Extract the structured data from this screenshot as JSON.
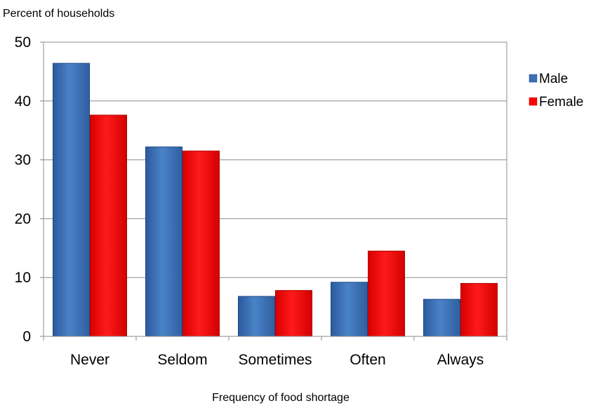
{
  "chart_data": {
    "type": "bar",
    "ylabel": "Percent of households",
    "xlabel": "Frequency of food shortage",
    "categories": [
      "Never",
      "Seldom",
      "Sometimes",
      "Often",
      "Always"
    ],
    "ylim": [
      0,
      50
    ],
    "yticks": [
      0,
      10,
      20,
      30,
      40,
      50
    ],
    "grid": true,
    "legend_position": "right",
    "series": [
      {
        "name": "Male",
        "color": "#3a6fb6",
        "values": [
          46.4,
          32.2,
          6.8,
          9.2,
          6.3
        ]
      },
      {
        "name": "Female",
        "color": "#ff0000",
        "values": [
          37.6,
          31.5,
          7.8,
          14.5,
          9.0
        ]
      }
    ]
  }
}
